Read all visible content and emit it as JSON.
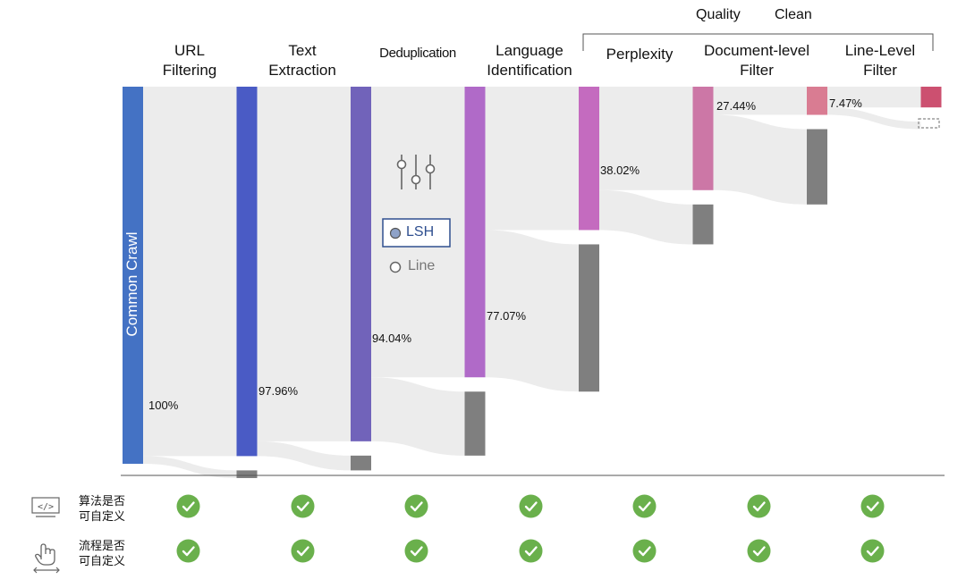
{
  "group": {
    "line1": "Quality",
    "line2": "Clean"
  },
  "stages": [
    {
      "name": "Common Crawl",
      "line1": "",
      "line2": "",
      "pct": "100%",
      "color": "#4472c4",
      "kept": 100,
      "dropped": 0
    },
    {
      "name": "URL Filtering",
      "line1": "URL",
      "line2": "Filtering",
      "pct": "97.96%",
      "color": "#4a5bc5",
      "kept": 97.96,
      "dropped": 2.04
    },
    {
      "name": "Text Extraction",
      "line1": "Text",
      "line2": "Extraction",
      "pct": "94.04%",
      "color": "#7163ba",
      "kept": 94.04,
      "dropped": 3.92
    },
    {
      "name": "Deduplication",
      "line1": "Deduplication",
      "line2": "",
      "pct": "77.07%",
      "color": "#b06ac8",
      "kept": 77.07,
      "dropped": 16.97
    },
    {
      "name": "Language Identification",
      "line1": "Language",
      "line2": "Identification",
      "pct": "38.02%",
      "color": "#c46bbf",
      "kept": 38.02,
      "dropped": 39.05
    },
    {
      "name": "Perplexity",
      "line1": "Perplexity",
      "line2": "",
      "pct": "27.44%",
      "color": "#cc77a6",
      "kept": 27.44,
      "dropped": 10.58
    },
    {
      "name": "Document-level Filter",
      "line1": "Document-level",
      "line2": "Filter",
      "pct": "7.47%",
      "color": "#d97c92",
      "kept": 7.47,
      "dropped": 19.97
    },
    {
      "name": "Line-Level Filter",
      "line1": "Line-Level",
      "line2": "Filter",
      "pct": "",
      "color": "#cc5070",
      "kept": 5.5,
      "dropped": 1.97
    }
  ],
  "dedup_options": {
    "selected": "LSH",
    "other": "Line"
  },
  "rows": [
    {
      "label_line1": "算法是否",
      "label_line2": "可自定义",
      "icon": "code-icon"
    },
    {
      "label_line1": "流程是否",
      "label_line2": "可自定义",
      "icon": "touch-swipe-icon"
    }
  ],
  "colors": {
    "drop": "#7f7f7f",
    "flow": "#ececec",
    "check": "#6ab04c"
  }
}
